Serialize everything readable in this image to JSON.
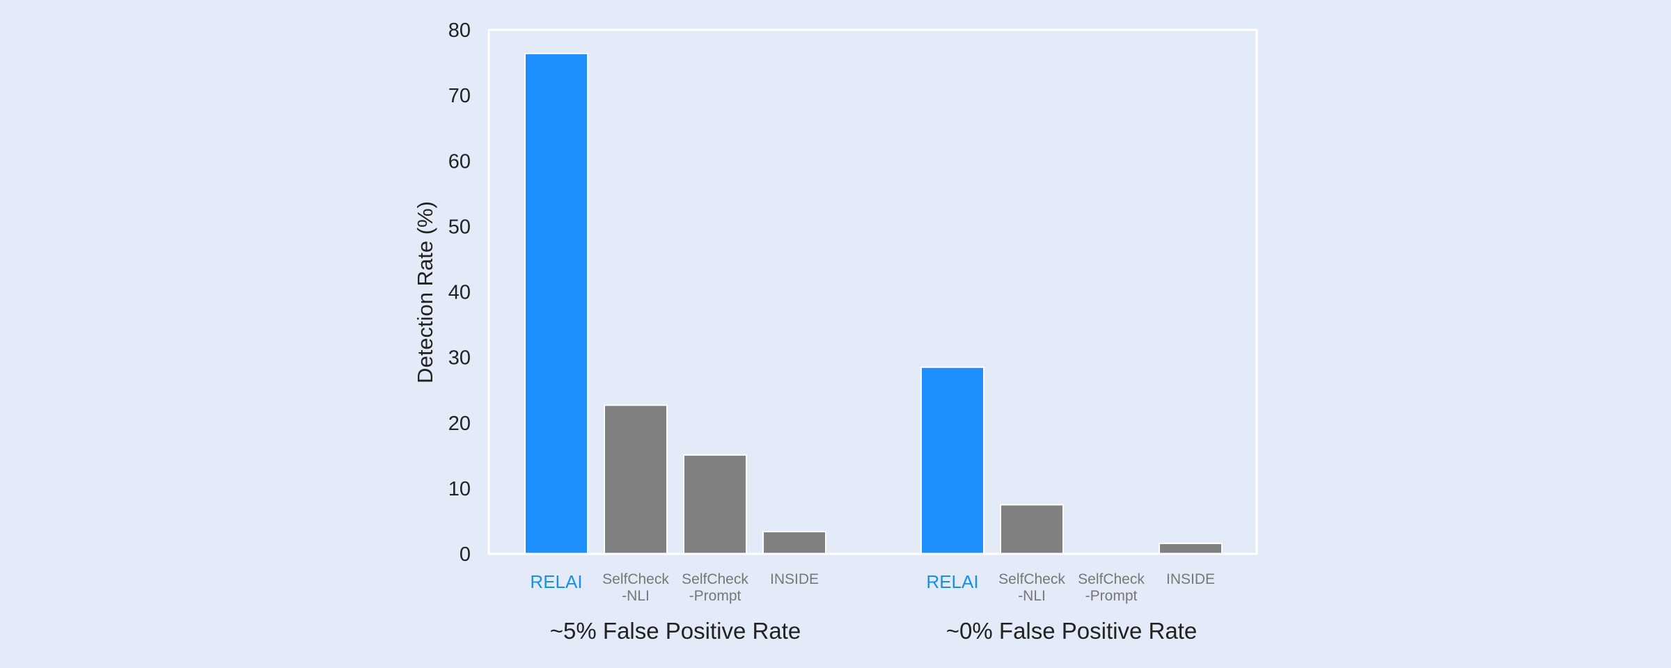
{
  "chart_data": {
    "type": "bar",
    "title": "",
    "xlabel": "",
    "ylabel": "Detection Rate (%)",
    "ylim": [
      0,
      80
    ],
    "yticks": [
      0,
      10,
      20,
      30,
      40,
      50,
      60,
      70,
      80
    ],
    "grid": false,
    "legend": "none",
    "groups": [
      {
        "label": "~5% False Positive Rate",
        "bars": [
          {
            "label": "RELAI",
            "value": 76.4,
            "highlight": true
          },
          {
            "label": "SelfCheck\n-NLI",
            "value": 22.7,
            "highlight": false
          },
          {
            "label": "SelfCheck\n-Prompt",
            "value": 15.1,
            "highlight": false
          },
          {
            "label": "INSIDE",
            "value": 3.4,
            "highlight": false
          }
        ]
      },
      {
        "label": "~0% False Positive Rate",
        "bars": [
          {
            "label": "RELAI",
            "value": 28.5,
            "highlight": true
          },
          {
            "label": "SelfCheck\n-NLI",
            "value": 7.5,
            "highlight": false
          },
          {
            "label": "SelfCheck\n-Prompt",
            "value": 0,
            "highlight": false
          },
          {
            "label": "INSIDE",
            "value": 1.6,
            "highlight": false
          }
        ]
      }
    ]
  },
  "colors": {
    "background": "#e4ebf8",
    "highlight_bar": "#1e8fff",
    "baseline_bar": "#808080",
    "highlight_label": "#1a8fe8",
    "baseline_label": "#777777",
    "axis_frame": "#ffffff"
  }
}
